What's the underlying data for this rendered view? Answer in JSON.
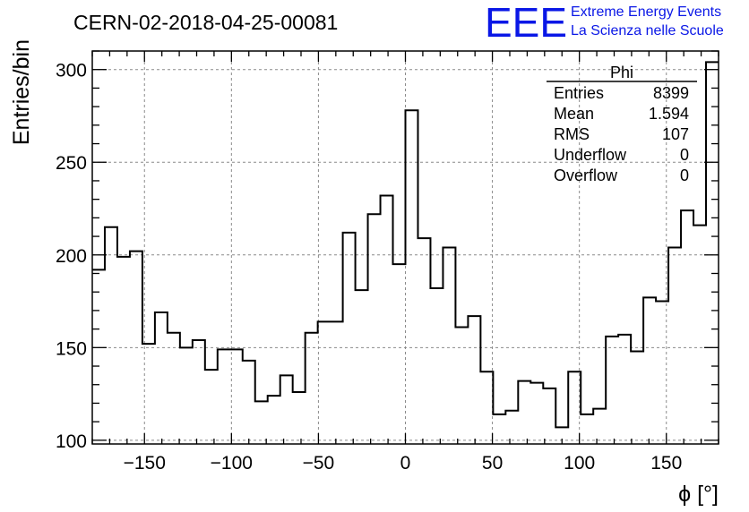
{
  "header": {
    "run_title": "CERN-02-2018-04-25-00081",
    "logo_text": "EEE",
    "logo_line1": "Extreme Energy Events",
    "logo_line2": "La Scienza nelle Scuole"
  },
  "colors": {
    "line": "#000000",
    "grid": "#8a8a8a",
    "logo": "#0a17e6",
    "background": "#ffffff"
  },
  "stats": {
    "title": "Phi",
    "rows": [
      {
        "label": "Entries",
        "value": "8399"
      },
      {
        "label": "Mean",
        "value": "1.594"
      },
      {
        "label": "RMS",
        "value": "107"
      },
      {
        "label": "Underflow",
        "value": "0"
      },
      {
        "label": "Overflow",
        "value": "0"
      }
    ]
  },
  "chart_data": {
    "type": "histogram",
    "title": "CERN-02-2018-04-25-00081",
    "xlabel": "ϕ [°]",
    "ylabel": "Entries/bin",
    "xlim": [
      -180,
      180
    ],
    "ylim": [
      98,
      310
    ],
    "bin_width": 7.2,
    "xticks": [
      -150,
      -100,
      -50,
      0,
      50,
      100,
      150
    ],
    "xtick_labels": [
      "−150",
      "−100",
      "−50",
      "0",
      "50",
      "100",
      "150"
    ],
    "yticks": [
      100,
      150,
      200,
      250,
      300
    ],
    "ytick_labels": [
      "100",
      "150",
      "200",
      "250",
      "300"
    ],
    "grid": true,
    "values": [
      192,
      215,
      199,
      202,
      152,
      169,
      158,
      150,
      154,
      138,
      149,
      149,
      143,
      121,
      124,
      135,
      126,
      158,
      164,
      164,
      212,
      181,
      222,
      232,
      195,
      278,
      209,
      182,
      204,
      161,
      167,
      137,
      114,
      116,
      132,
      131,
      128,
      107,
      137,
      114,
      117,
      156,
      157,
      148,
      177,
      175,
      204,
      224,
      216,
      304
    ]
  }
}
